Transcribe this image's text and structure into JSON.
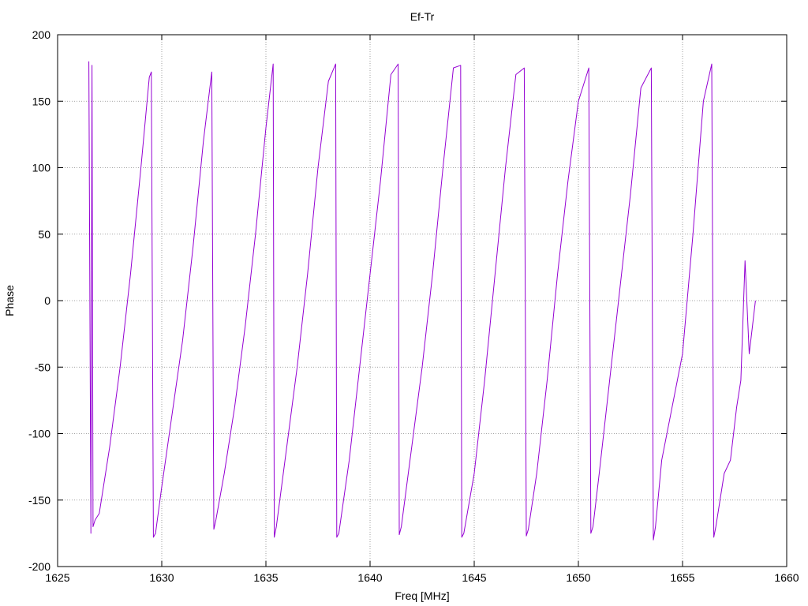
{
  "chart_data": {
    "type": "line",
    "title": "Ef-Tr",
    "xlabel": "Freq [MHz]",
    "ylabel": "Phase",
    "xlim": [
      1625,
      1660
    ],
    "ylim": [
      -200,
      200
    ],
    "xticks": [
      1625,
      1630,
      1635,
      1640,
      1645,
      1650,
      1655,
      1660
    ],
    "yticks": [
      -200,
      -150,
      -100,
      -50,
      0,
      50,
      100,
      150,
      200
    ],
    "grid": true,
    "line_color": "#9400d3",
    "series": [
      {
        "x": [
          1626.5,
          1626.6,
          1626.65,
          1626.7,
          1626.8,
          1627,
          1627.5,
          1628,
          1628.5,
          1629,
          1629.4,
          1629.5,
          1629.6,
          1629.7,
          1630,
          1630.5,
          1631,
          1631.5,
          1632,
          1632.4,
          1632.5,
          1632.6,
          1633,
          1633.5,
          1634,
          1634.5,
          1635,
          1635.35,
          1635.4,
          1635.5,
          1636,
          1636.5,
          1637,
          1637.5,
          1638,
          1638.35,
          1638.4,
          1638.5,
          1639,
          1639.5,
          1640,
          1640.5,
          1641,
          1641.35,
          1641.4,
          1641.5,
          1642,
          1642.5,
          1643,
          1643.5,
          1644,
          1644.35,
          1644.4,
          1644.5,
          1645,
          1645.5,
          1646,
          1646.5,
          1647,
          1647.4,
          1647.5,
          1647.6,
          1648,
          1648.5,
          1649,
          1649.5,
          1650,
          1650.5,
          1650.6,
          1650.7,
          1651,
          1651.5,
          1652,
          1652.5,
          1653,
          1653.5,
          1653.6,
          1653.7,
          1654,
          1654.5,
          1655,
          1655.5,
          1656,
          1656.4,
          1656.5,
          1656.6,
          1657,
          1657.3,
          1657.6,
          1657.8,
          1658,
          1658.2,
          1658.5
        ],
        "y": [
          180,
          -175,
          177,
          -170,
          -165,
          -160,
          -110,
          -50,
          20,
          100,
          168,
          172,
          -178,
          -175,
          -140,
          -85,
          -30,
          40,
          120,
          172,
          -172,
          -165,
          -130,
          -80,
          -20,
          50,
          130,
          178,
          -178,
          -170,
          -110,
          -50,
          20,
          100,
          165,
          178,
          -178,
          -175,
          -120,
          -50,
          20,
          90,
          170,
          178,
          -176,
          -170,
          -110,
          -50,
          20,
          100,
          175,
          177,
          -178,
          -175,
          -130,
          -60,
          20,
          100,
          170,
          175,
          -177,
          -172,
          -130,
          -60,
          20,
          90,
          150,
          175,
          -175,
          -170,
          -130,
          -60,
          10,
          80,
          160,
          175,
          -180,
          -170,
          -120,
          -80,
          -40,
          50,
          150,
          178,
          -178,
          -170,
          -130,
          -120,
          -80,
          -60,
          30,
          -40,
          0
        ]
      }
    ]
  }
}
